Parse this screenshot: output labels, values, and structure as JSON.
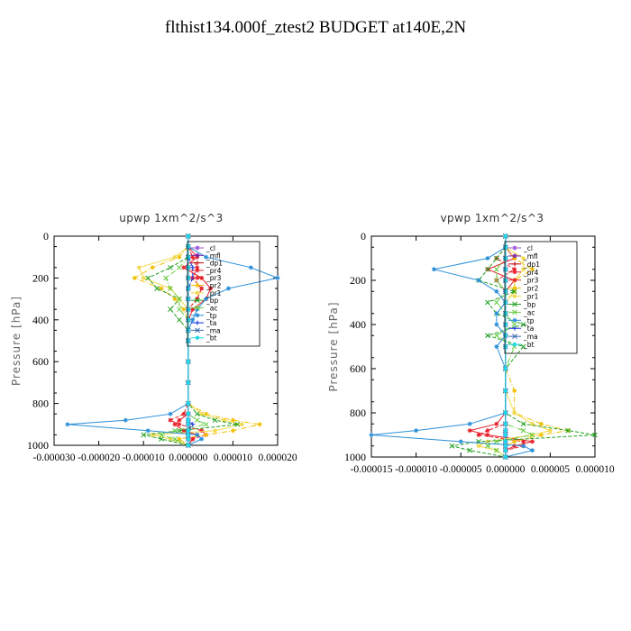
{
  "page": {
    "title": "flthist134.000f_ztest2  BUDGET at140E,2N"
  },
  "chart_data": [
    {
      "type": "line",
      "title": "upwp   1xm^2/s^3",
      "ylabel": "Pressure [hPa]",
      "xlabel": "",
      "y_inverted": true,
      "ylim": [
        0,
        1000
      ],
      "yticks": [
        "0",
        "200",
        "400",
        "600",
        "800",
        "1000"
      ],
      "xlim": [
        -3e-05,
        2e-05
      ],
      "xticks": [
        "-0.000030",
        "-0.000020",
        "-0.000010",
        "0.000000",
        "0.000010",
        "0.000020"
      ],
      "legend_position": "top-right",
      "y": [
        0,
        50,
        100,
        150,
        200,
        250,
        300,
        350,
        400,
        450,
        500,
        600,
        700,
        800,
        850,
        880,
        900,
        930,
        950,
        970,
        1000
      ],
      "series": [
        {
          "name": "_cl",
          "color": "#9a4fd8",
          "values": [
            0,
            0,
            0,
            0,
            0,
            0,
            0,
            0,
            0,
            0,
            0,
            0,
            0,
            0,
            0,
            0,
            0,
            0,
            0,
            0,
            0
          ]
        },
        {
          "name": "_mfl",
          "color": "#7a1fa8",
          "values": [
            0,
            0,
            0,
            0,
            0,
            0,
            0,
            0,
            0,
            0,
            0,
            0,
            0,
            0,
            0,
            0,
            0,
            0,
            0,
            0,
            0
          ]
        },
        {
          "name": "_dp1",
          "color": "#c00000",
          "values": [
            0,
            0,
            0,
            0,
            0,
            0,
            0,
            0,
            0,
            0,
            0,
            0,
            0,
            0,
            0,
            0,
            0,
            0,
            0,
            0,
            0
          ]
        },
        {
          "name": "_pr4",
          "color": "#e8202a",
          "values": [
            0,
            0,
            2e-06,
            -1e-06,
            3e-06,
            5e-06,
            4e-06,
            1e-06,
            0,
            0,
            0,
            0,
            0,
            0,
            0,
            -2e-06,
            -3e-06,
            -1e-06,
            2e-06,
            1e-06,
            0
          ]
        },
        {
          "name": "_pr3",
          "color": "#e8202a",
          "values": [
            0,
            0,
            1e-06,
            2e-06,
            1e-06,
            3e-06,
            2e-06,
            0,
            0,
            0,
            0,
            0,
            0,
            0,
            -1e-06,
            -4e-06,
            -2e-06,
            3e-06,
            4e-06,
            1e-06,
            0
          ]
        },
        {
          "name": "_pr2",
          "color": "#f0c000",
          "values": [
            0,
            0,
            -2e-06,
            -8e-06,
            -1.2e-05,
            -6e-06,
            -3e-06,
            -1e-06,
            0,
            0,
            0,
            0,
            0,
            0,
            4e-06,
            1e-05,
            1.6e-05,
            1e-05,
            4e-06,
            -2e-06,
            0
          ]
        },
        {
          "name": "_pr1",
          "color": "#f2d84a",
          "values": [
            0,
            0,
            -3e-06,
            -1.1e-05,
            -1e-05,
            -4e-06,
            -2e-06,
            0,
            0,
            0,
            0,
            0,
            0,
            0,
            3e-06,
            8e-06,
            1.2e-05,
            6e-06,
            -8e-06,
            -4e-06,
            0
          ]
        },
        {
          "name": "_bp",
          "color": "#22a022",
          "values": [
            0,
            0,
            0,
            -4e-06,
            -9e-06,
            -7e-06,
            -2e-06,
            -4e-06,
            -2e-06,
            0,
            0,
            0,
            0,
            0,
            2e-06,
            6e-06,
            1.1e-05,
            -2e-06,
            -1e-05,
            -6e-06,
            0
          ]
        },
        {
          "name": "_ac",
          "color": "#66cc44",
          "values": [
            0,
            0,
            0,
            -2e-06,
            -5e-06,
            -4e-06,
            -2e-06,
            -2e-06,
            0,
            0,
            0,
            0,
            0,
            0,
            0,
            2e-06,
            4e-06,
            -3e-06,
            -6e-06,
            -3e-06,
            0
          ]
        },
        {
          "name": "_tp",
          "color": "#2a8fd8",
          "values": [
            0,
            0,
            4e-06,
            1.4e-05,
            2e-05,
            9e-06,
            4e-06,
            2e-06,
            1e-06,
            0,
            0,
            0,
            0,
            0,
            -4e-06,
            -1.4e-05,
            -2.7e-05,
            -9e-06,
            2e-06,
            3e-06,
            0
          ]
        },
        {
          "name": "_ta",
          "color": "#1030e0",
          "values": [
            0,
            0,
            0,
            1e-06,
            1e-06,
            0,
            0,
            0,
            0,
            0,
            0,
            0,
            0,
            0,
            0,
            0,
            1e-06,
            0,
            0,
            0,
            0
          ]
        },
        {
          "name": "_ma",
          "color": "#3a6ab0",
          "values": [
            0,
            0,
            0,
            0,
            0,
            0,
            0,
            0,
            0,
            0,
            0,
            0,
            0,
            0,
            0,
            0,
            0,
            0,
            0,
            0,
            0
          ]
        },
        {
          "name": "_bt",
          "color": "#20d8e8",
          "values": [
            0,
            0,
            0,
            0,
            0,
            0,
            0,
            0,
            0,
            0,
            0,
            0,
            0,
            0,
            0,
            0,
            0,
            0,
            0,
            0,
            0
          ]
        }
      ]
    },
    {
      "type": "line",
      "title": "vpwp   1xm^2/s^3",
      "ylabel": "Pressure [hPa]",
      "xlabel": "",
      "y_inverted": true,
      "ylim": [
        0,
        1000
      ],
      "yticks": [
        "0",
        "200",
        "400",
        "600",
        "800",
        "1000"
      ],
      "xlim": [
        -1.5e-05,
        1e-05
      ],
      "xticks": [
        "-0.000015",
        "-0.000010",
        "-0.000005",
        "0.000000",
        "0.000005",
        "0.000010"
      ],
      "legend_position": "top-right",
      "y": [
        0,
        50,
        100,
        150,
        200,
        250,
        300,
        350,
        400,
        450,
        500,
        600,
        700,
        800,
        850,
        880,
        900,
        930,
        950,
        970,
        1000
      ],
      "series": [
        {
          "name": "_cl",
          "color": "#9a4fd8",
          "values": [
            0,
            0,
            0,
            0,
            0,
            0,
            0,
            0,
            0,
            0,
            0,
            0,
            0,
            0,
            0,
            0,
            0,
            0,
            0,
            0,
            0
          ]
        },
        {
          "name": "_mfl",
          "color": "#7a1fa8",
          "values": [
            0,
            0,
            0,
            0,
            0,
            0,
            0,
            0,
            0,
            0,
            0,
            0,
            0,
            0,
            0,
            0,
            0,
            0,
            0,
            0,
            0
          ]
        },
        {
          "name": "_dp1",
          "color": "#c00000",
          "values": [
            0,
            0,
            0,
            0,
            0,
            0,
            0,
            0,
            0,
            0,
            0,
            0,
            0,
            0,
            0,
            0,
            0,
            0,
            0,
            0,
            0
          ]
        },
        {
          "name": "_pr4",
          "color": "#e8202a",
          "values": [
            0,
            0,
            1e-06,
            -2e-06,
            1e-06,
            0,
            0,
            0,
            0,
            0,
            0,
            0,
            0,
            0,
            -1e-06,
            -4e-06,
            -2e-06,
            3e-06,
            1e-06,
            0,
            0
          ]
        },
        {
          "name": "_pr3",
          "color": "#e8202a",
          "values": [
            0,
            0,
            -1e-06,
            1e-06,
            -1e-06,
            0,
            0,
            0,
            0,
            0,
            0,
            0,
            0,
            0,
            0,
            -2e-06,
            -3e-06,
            2e-06,
            2e-06,
            0,
            0
          ]
        },
        {
          "name": "_pr2",
          "color": "#f0c000",
          "values": [
            0,
            0,
            1e-06,
            3e-06,
            1e-06,
            1e-06,
            0,
            0,
            0,
            0,
            0,
            0,
            1e-06,
            1e-06,
            4e-06,
            7e-06,
            4e-06,
            1e-06,
            0,
            0,
            0
          ]
        },
        {
          "name": "_pr1",
          "color": "#f2d84a",
          "values": [
            0,
            0,
            2e-06,
            2e-06,
            1e-06,
            1e-06,
            0,
            0,
            0,
            0,
            0,
            0,
            0,
            1e-06,
            3e-06,
            5e-06,
            3e-06,
            -2e-06,
            -3e-06,
            -1e-06,
            0
          ]
        },
        {
          "name": "_bp",
          "color": "#22a022",
          "values": [
            0,
            0,
            -1e-06,
            -2e-06,
            -3e-06,
            1e-06,
            -2e-06,
            -1e-06,
            2e-06,
            -2e-06,
            2e-06,
            0,
            0,
            0,
            2e-06,
            7e-06,
            1e-05,
            -3e-06,
            -6e-06,
            -4e-06,
            0
          ]
        },
        {
          "name": "_ac",
          "color": "#66cc44",
          "values": [
            0,
            0,
            0,
            -1e-06,
            -1e-06,
            0,
            -1e-06,
            0,
            1e-06,
            -1e-06,
            1e-06,
            0,
            0,
            0,
            0,
            2e-06,
            3e-06,
            -1e-06,
            -2e-06,
            -1e-06,
            0
          ]
        },
        {
          "name": "_tp",
          "color": "#2a8fd8",
          "values": [
            0,
            0,
            -2e-06,
            -8e-06,
            -3e-06,
            -1e-06,
            0,
            -1e-06,
            -1e-06,
            0,
            -1e-06,
            0,
            0,
            0,
            -4e-06,
            -1e-05,
            -1.5e-05,
            -5e-06,
            2e-06,
            3e-06,
            0
          ]
        },
        {
          "name": "_ta",
          "color": "#1030e0",
          "values": [
            0,
            0,
            0,
            0,
            0,
            0,
            0,
            0,
            0,
            0,
            0,
            0,
            0,
            0,
            0,
            0,
            0,
            0,
            0,
            0,
            0
          ]
        },
        {
          "name": "_ma",
          "color": "#3a6ab0",
          "values": [
            0,
            0,
            0,
            0,
            0,
            0,
            0,
            0,
            0,
            0,
            0,
            0,
            0,
            0,
            0,
            0,
            0,
            0,
            0,
            0,
            0
          ]
        },
        {
          "name": "_bt",
          "color": "#20d8e8",
          "values": [
            0,
            0,
            0,
            0,
            0,
            0,
            0,
            0,
            0,
            0,
            0,
            0,
            0,
            0,
            0,
            0,
            0,
            0,
            0,
            0,
            0
          ]
        }
      ]
    }
  ]
}
